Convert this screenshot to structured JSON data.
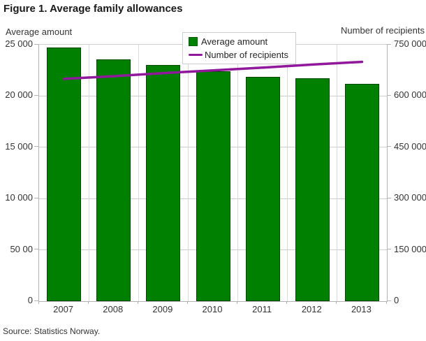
{
  "window": {
    "title": "Figure 1. Average family allowances"
  },
  "chart_data": {
    "type": "combo-bar-line",
    "title": "Figure 1. Average family allowances",
    "categories": [
      "2007",
      "2008",
      "2009",
      "2010",
      "2011",
      "2012",
      "2013"
    ],
    "series": [
      {
        "name": "Average amount",
        "type": "bar",
        "axis": "left",
        "color": "#008000",
        "values": [
          24700,
          23600,
          23000,
          22400,
          21900,
          21700,
          21200
        ]
      },
      {
        "name": "Number of recipients",
        "type": "line",
        "axis": "right",
        "color": "#90189B",
        "values": [
          650000,
          658000,
          667000,
          675000,
          683000,
          692000,
          700000
        ]
      }
    ],
    "left_axis": {
      "title": "Average amount",
      "range": [
        0,
        25000
      ],
      "ticks": [
        {
          "label": "25 000",
          "value": 25000
        },
        {
          "label": "20 000",
          "value": 20000
        },
        {
          "label": "15 000",
          "value": 15000
        },
        {
          "label": "10 000",
          "value": 10000
        },
        {
          "label": "50 00",
          "value": 5000
        },
        {
          "label": "0",
          "value": 0
        }
      ]
    },
    "right_axis": {
      "title": "Number of recipients",
      "range": [
        0,
        750000
      ],
      "ticks": [
        {
          "label": "750 000",
          "value": 750000
        },
        {
          "label": "600 000",
          "value": 600000
        },
        {
          "label": "450 000",
          "value": 450000
        },
        {
          "label": "300 000",
          "value": 300000
        },
        {
          "label": "150 000",
          "value": 150000
        },
        {
          "label": "0",
          "value": 0
        }
      ]
    },
    "legend": {
      "position": "top-center",
      "items": [
        "Average amount",
        "Number of recipients"
      ]
    },
    "grid": true,
    "source": "Source: Statistics Norway."
  },
  "colors": {
    "bar_green": "#008000",
    "line_purple": "#90189B",
    "gridline": "#cccccc",
    "axis_line": "#b3b3b3",
    "label_text": "#333333",
    "title_text": "#1a1a1a"
  }
}
